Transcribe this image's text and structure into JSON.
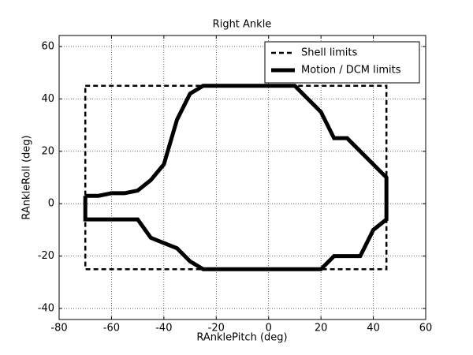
{
  "chart_data": {
    "type": "line",
    "title": "Right Ankle",
    "x_label": "RAnklePitch (deg)",
    "y_label": "RAnkleRoll (deg)",
    "xlim": [
      -80,
      60
    ],
    "ylim": [
      -44.2,
      64.2
    ],
    "xticks": [
      -80,
      -60,
      -40,
      -20,
      0,
      20,
      40,
      60
    ],
    "yticks": [
      -40,
      -20,
      0,
      20,
      40,
      60
    ],
    "grid": true,
    "legend": "upper-right",
    "series": [
      {
        "name": "Shell limits",
        "color": "#000000",
        "linestyle": "dashed",
        "linewidth": 2.5,
        "x": [
          -70,
          45,
          45,
          -70,
          -70
        ],
        "values": [
          45,
          45,
          -25,
          -25,
          45
        ]
      },
      {
        "name": "Motion / DCM limits",
        "color": "#000000",
        "linestyle": "solid",
        "linewidth": 5,
        "x": [
          -70,
          -65,
          -60,
          -55,
          -50,
          -45,
          -40,
          -35,
          -30,
          -25,
          10,
          20,
          25,
          30,
          45,
          45,
          40,
          35,
          25,
          20,
          -25,
          -30,
          -35,
          -40,
          -45,
          -50,
          -70,
          -70
        ],
        "values": [
          3,
          3,
          4,
          4,
          5,
          9,
          15,
          32,
          42,
          45,
          45,
          35,
          25,
          25,
          10,
          -6,
          -10,
          -20,
          -20,
          -25,
          -25,
          -22,
          -17,
          -15,
          -13,
          -6,
          -6,
          3
        ]
      }
    ]
  }
}
